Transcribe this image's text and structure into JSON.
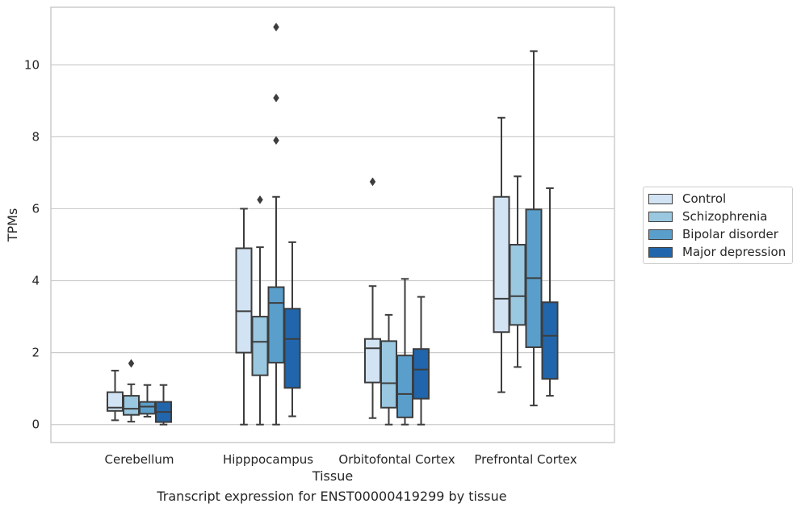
{
  "caption": "Transcript expression for ENST00000419299 by tissue",
  "chart_data": {
    "type": "box",
    "xlabel": "Tissue",
    "ylabel": "TPMs",
    "ylim": [
      -0.5,
      11.6
    ],
    "yticks": [
      0,
      2,
      4,
      6,
      8,
      10
    ],
    "grid": "horizontal",
    "legend_position": "right",
    "categories": [
      "Cerebellum",
      "Hipppocampus",
      "Orbitofontal Cortex",
      "Prefrontal Cortex"
    ],
    "series": [
      {
        "name": "Control",
        "color": "#d2e3f3",
        "boxes": [
          {
            "whisker_low": 0.12,
            "q1": 0.38,
            "median": 0.47,
            "q3": 0.9,
            "whisker_high": 1.5,
            "outliers": []
          },
          {
            "whisker_low": 0.0,
            "q1": 2.0,
            "median": 3.15,
            "q3": 4.9,
            "whisker_high": 6.0,
            "outliers": []
          },
          {
            "whisker_low": 0.18,
            "q1": 1.17,
            "median": 2.12,
            "q3": 2.38,
            "whisker_high": 3.85,
            "outliers": [
              6.75
            ]
          },
          {
            "whisker_low": 0.9,
            "q1": 2.57,
            "median": 3.5,
            "q3": 6.33,
            "whisker_high": 8.53,
            "outliers": []
          }
        ]
      },
      {
        "name": "Schizophrenia",
        "color": "#9ac8e0",
        "boxes": [
          {
            "whisker_low": 0.08,
            "q1": 0.27,
            "median": 0.44,
            "q3": 0.8,
            "whisker_high": 1.12,
            "outliers": [
              1.7
            ]
          },
          {
            "whisker_low": 0.0,
            "q1": 1.37,
            "median": 2.3,
            "q3": 3.0,
            "whisker_high": 4.93,
            "outliers": [
              6.25
            ]
          },
          {
            "whisker_low": 0.0,
            "q1": 0.47,
            "median": 1.15,
            "q3": 2.32,
            "whisker_high": 3.05,
            "outliers": []
          },
          {
            "whisker_low": 1.6,
            "q1": 2.77,
            "median": 3.57,
            "q3": 5.0,
            "whisker_high": 6.9,
            "outliers": []
          }
        ]
      },
      {
        "name": "Bipolar disorder",
        "color": "#5a9fcc",
        "boxes": [
          {
            "whisker_low": 0.22,
            "q1": 0.3,
            "median": 0.5,
            "q3": 0.63,
            "whisker_high": 1.1,
            "outliers": []
          },
          {
            "whisker_low": 0.0,
            "q1": 1.72,
            "median": 3.38,
            "q3": 3.82,
            "whisker_high": 6.33,
            "outliers": [
              7.9,
              9.08,
              11.05
            ]
          },
          {
            "whisker_low": 0.0,
            "q1": 0.2,
            "median": 0.85,
            "q3": 1.92,
            "whisker_high": 4.05,
            "outliers": []
          },
          {
            "whisker_low": 0.53,
            "q1": 2.15,
            "median": 4.07,
            "q3": 5.98,
            "whisker_high": 10.38,
            "outliers": []
          }
        ]
      },
      {
        "name": "Major depression",
        "color": "#2166ac",
        "boxes": [
          {
            "whisker_low": 0.0,
            "q1": 0.07,
            "median": 0.35,
            "q3": 0.63,
            "whisker_high": 1.1,
            "outliers": []
          },
          {
            "whisker_low": 0.23,
            "q1": 1.02,
            "median": 2.38,
            "q3": 3.22,
            "whisker_high": 5.07,
            "outliers": []
          },
          {
            "whisker_low": 0.0,
            "q1": 0.72,
            "median": 1.53,
            "q3": 2.1,
            "whisker_high": 3.55,
            "outliers": []
          },
          {
            "whisker_low": 0.8,
            "q1": 1.27,
            "median": 2.47,
            "q3": 3.4,
            "whisker_high": 6.57,
            "outliers": []
          }
        ]
      }
    ]
  }
}
